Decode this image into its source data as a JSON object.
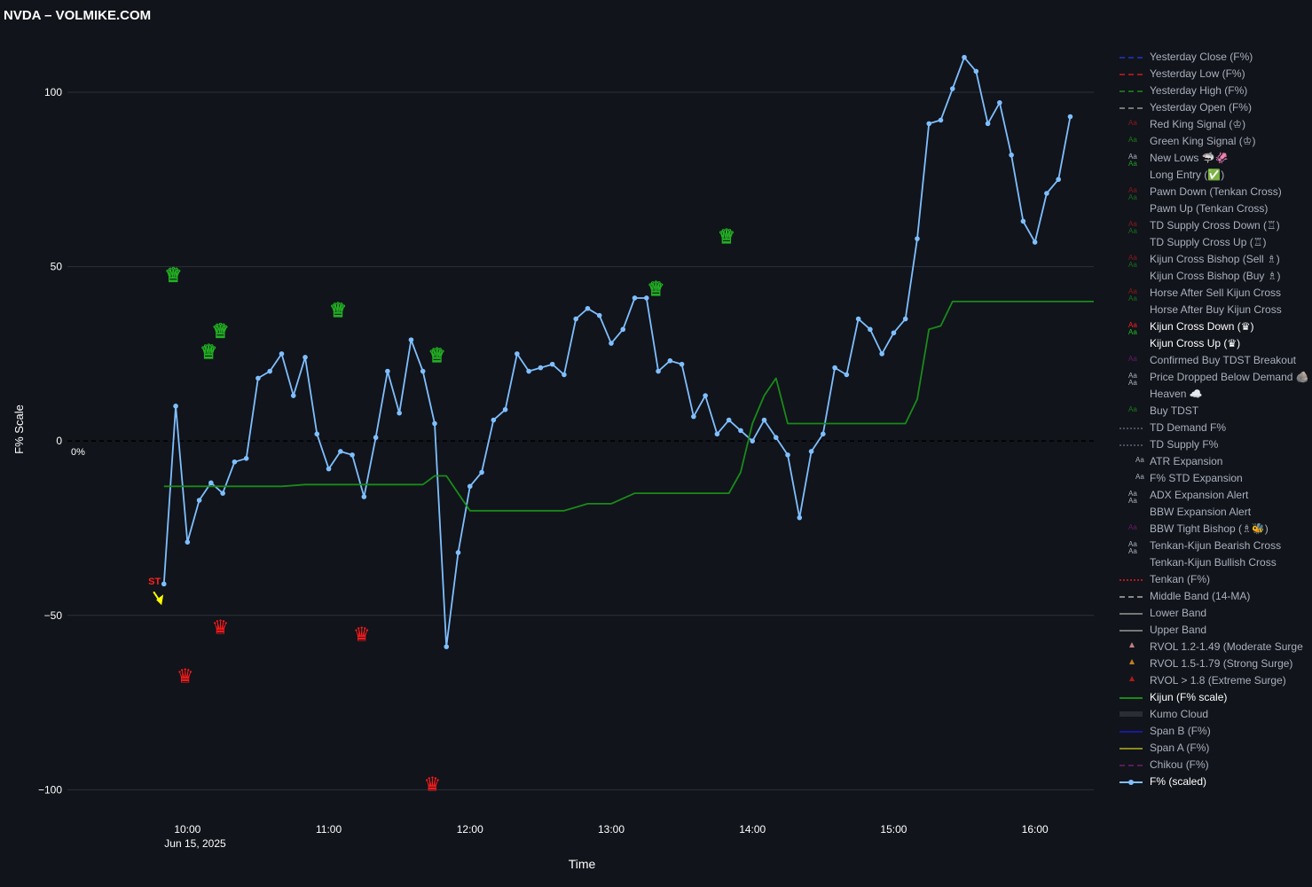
{
  "page": {
    "title": "NVDA – VOLMIKE.COM"
  },
  "chart_data": {
    "type": "line",
    "title": "NVDA – VOLMIKE.COM",
    "xlabel": "Time",
    "ylabel": "F% Scale",
    "zero_label": "0%",
    "x_tick_labels": [
      "10:00",
      "11:00",
      "12:00",
      "13:00",
      "14:00",
      "15:00",
      "16:00"
    ],
    "x_date_label": "Jun 15, 2025",
    "y_tick_values": [
      100,
      50,
      0,
      -50,
      -100
    ],
    "y_tick_labels": [
      "100",
      "50",
      "0",
      "−50",
      "−100"
    ],
    "ylim": [
      -105,
      115
    ],
    "xlim_minutes": [
      549,
      985
    ],
    "grid": true,
    "legend_position": "right",
    "series": [
      {
        "name": "F% (scaled)",
        "color": "#7fbfff",
        "x_minutes": [
          590,
          595,
          600,
          605,
          610,
          615,
          620,
          625,
          630,
          635,
          640,
          645,
          650,
          655,
          660,
          665,
          670,
          675,
          680,
          685,
          690,
          695,
          700,
          705,
          710,
          715,
          720,
          725,
          730,
          735,
          740,
          745,
          750,
          755,
          760,
          765,
          770,
          775,
          780,
          785,
          790,
          795,
          800,
          805,
          810,
          815,
          820,
          825,
          830,
          835,
          840,
          845,
          850,
          855,
          860,
          865,
          870,
          875,
          880,
          885,
          890,
          895,
          900,
          905,
          910,
          915,
          920,
          925,
          930,
          935,
          940,
          945,
          950,
          955,
          960,
          965,
          970,
          975
        ],
        "values": [
          -41,
          10,
          -29,
          -17,
          -12,
          -15,
          -6,
          -5,
          18,
          20,
          25,
          13,
          24,
          2,
          -8,
          -3,
          -4,
          -16,
          1,
          20,
          8,
          29,
          20,
          5,
          -59,
          -32,
          -13,
          -9,
          6,
          9,
          25,
          20,
          21,
          22,
          19,
          35,
          38,
          36,
          28,
          32,
          41,
          41,
          20,
          23,
          22,
          7,
          13,
          2,
          6,
          3,
          0,
          6,
          1,
          -4,
          -22,
          -3,
          2,
          21,
          19,
          35,
          32,
          25,
          31,
          35,
          58,
          91,
          92,
          101,
          110,
          106,
          91,
          97,
          82,
          63,
          57,
          71,
          75,
          93
        ]
      },
      {
        "name": "Kijun (F% scale)",
        "color": "#1a8a1a",
        "x_minutes": [
          590,
          615,
          640,
          650,
          700,
          705,
          710,
          720,
          725,
          760,
          765,
          770,
          780,
          790,
          830,
          835,
          840,
          845,
          850,
          855,
          865,
          880,
          890,
          905,
          910,
          915,
          920,
          925,
          930,
          985
        ],
        "values": [
          -13,
          -13,
          -13,
          -12.5,
          -12.5,
          -10,
          -10,
          -20,
          -20,
          -20,
          -19,
          -18,
          -18,
          -15,
          -15,
          -9,
          5,
          13,
          18,
          5,
          5,
          5,
          5,
          5,
          12,
          32,
          33,
          40,
          40,
          40
        ]
      }
    ],
    "markers": {
      "green_crowns": [
        {
          "x": 594,
          "y": 48
        },
        {
          "x": 609,
          "y": 26
        },
        {
          "x": 614,
          "y": 32
        },
        {
          "x": 664,
          "y": 38
        },
        {
          "x": 706,
          "y": 25
        },
        {
          "x": 799,
          "y": 44
        },
        {
          "x": 829,
          "y": 59
        }
      ],
      "red_crowns": [
        {
          "x": 599,
          "y": -67
        },
        {
          "x": 614,
          "y": -53
        },
        {
          "x": 674,
          "y": -55
        },
        {
          "x": 704,
          "y": -98
        }
      ],
      "st_label": {
        "text": "ST",
        "x": 589,
        "y": -43
      }
    }
  },
  "legend": {
    "items": [
      {
        "label": "Yesterday Close (F%)",
        "swatch": "dash",
        "color": "#1a2f9e",
        "bright": false
      },
      {
        "label": "Yesterday Low (F%)",
        "swatch": "dash",
        "color": "#9e1a1a",
        "bright": false
      },
      {
        "label": "Yesterday High (F%)",
        "swatch": "dash",
        "color": "#1a6e1a",
        "bright": false
      },
      {
        "label": "Yesterday Open (F%)",
        "swatch": "dash",
        "color": "#777777",
        "bright": false
      },
      {
        "label": "Red King Signal (♔)",
        "swatch": "aa",
        "color": "#8b1a1a",
        "color2": "",
        "bright": false
      },
      {
        "label": "Green King Signal (♔)",
        "swatch": "aa",
        "color": "#1a7a1a",
        "color2": "",
        "bright": false
      },
      {
        "label": "New Lows 🦈🦑",
        "swatch": "aa",
        "color": "#aab0bb",
        "color2": "#1fa01f",
        "bright": false
      },
      {
        "label": "Long Entry (✅)",
        "swatch": "none",
        "color": "",
        "color2": "",
        "bright": false
      },
      {
        "label": "Pawn Down (Tenkan Cross)",
        "swatch": "aa",
        "color": "#8b1a1a",
        "color2": "#1a6e1a",
        "bright": false
      },
      {
        "label": "Pawn Up (Tenkan Cross)",
        "swatch": "none",
        "color": "",
        "color2": "",
        "bright": false
      },
      {
        "label": "TD Supply Cross Down (♖)",
        "swatch": "aa",
        "color": "#8b1a1a",
        "color2": "#1a6e1a",
        "bright": false
      },
      {
        "label": "TD Supply Cross Up (♖)",
        "swatch": "none",
        "color": "",
        "color2": "",
        "bright": false
      },
      {
        "label": "Kijun Cross Bishop (Sell ♗)",
        "swatch": "aa",
        "color": "#8b1a1a",
        "color2": "#1a6e1a",
        "bright": false
      },
      {
        "label": "Kijun Cross Bishop (Buy ♗)",
        "swatch": "none",
        "color": "",
        "color2": "",
        "bright": false
      },
      {
        "label": "Horse After Sell Kijun Cross",
        "swatch": "aa",
        "color": "#8b1a1a",
        "color2": "#1a6e1a",
        "bright": false
      },
      {
        "label": "Horse After Buy Kijun Cross",
        "swatch": "none",
        "color": "",
        "color2": "",
        "bright": false
      },
      {
        "label": "Kijun Cross Down (♛)",
        "swatch": "aa",
        "color": "#ff2020",
        "color2": "#1fc01f",
        "bright": true
      },
      {
        "label": "Kijun Cross Up (♛)",
        "swatch": "none",
        "color": "",
        "color2": "",
        "bright": true
      },
      {
        "label": "Confirmed Buy TDST Breakout",
        "swatch": "aa",
        "color": "#6a1a6a",
        "color2": "",
        "bright": false
      },
      {
        "label": "Price Dropped Below Demand 🪨",
        "swatch": "aa",
        "color": "#aab0bb",
        "color2": "#aab0bb",
        "bright": false
      },
      {
        "label": "Heaven ☁️",
        "swatch": "none",
        "color": "",
        "color2": "",
        "bright": false
      },
      {
        "label": "Buy TDST",
        "swatch": "aa",
        "color": "#1a7a1a",
        "color2": "",
        "bright": false
      },
      {
        "label": "TD Demand F%",
        "swatch": "dot",
        "color": "#4a5060",
        "bright": false
      },
      {
        "label": "TD Supply F%",
        "swatch": "dot",
        "color": "#4a5060",
        "bright": false
      },
      {
        "label": "ATR Expansion",
        "swatch": "aa-right",
        "color": "#aab0bb",
        "color2": "",
        "bright": false
      },
      {
        "label": "F% STD Expansion",
        "swatch": "aa-right",
        "color": "#aab0bb",
        "color2": "",
        "bright": false
      },
      {
        "label": "ADX Expansion Alert",
        "swatch": "aa",
        "color": "#aab0bb",
        "color2": "#aab0bb",
        "bright": false
      },
      {
        "label": "BBW Expansion Alert",
        "swatch": "none",
        "color": "",
        "color2": "",
        "bright": false
      },
      {
        "label": "BBW Tight Bishop (♗🐝)",
        "swatch": "aa",
        "color": "#6a1a6a",
        "color2": "",
        "bright": false
      },
      {
        "label": "Tenkan-Kijun Bearish Cross",
        "swatch": "aa",
        "color": "#aab0bb",
        "color2": "#aab0bb",
        "bright": false
      },
      {
        "label": "Tenkan-Kijun Bullish Cross",
        "swatch": "none",
        "color": "",
        "color2": "",
        "bright": false
      },
      {
        "label": "Tenkan (F%)",
        "swatch": "dot",
        "color": "#b01a1a",
        "bright": false
      },
      {
        "label": "Middle Band (14-MA)",
        "swatch": "dash",
        "color": "#888888",
        "bright": false
      },
      {
        "label": "Lower Band",
        "swatch": "solid",
        "color": "#777777",
        "bright": false
      },
      {
        "label": "Upper Band",
        "swatch": "solid",
        "color": "#777777",
        "bright": false
      },
      {
        "label": "RVOL 1.2-1.49 (Moderate Surge",
        "swatch": "tri",
        "color": "#c08080",
        "bright": false
      },
      {
        "label": "RVOL 1.5-1.79 (Strong Surge)",
        "swatch": "tri",
        "color": "#c08020",
        "bright": false
      },
      {
        "label": "RVOL > 1.8 (Extreme Surge)",
        "swatch": "tri",
        "color": "#b01a1a",
        "bright": false
      },
      {
        "label": "Kijun (F% scale)",
        "swatch": "solid",
        "color": "#1a8a1a",
        "bright": true
      },
      {
        "label": "Kumo Cloud",
        "swatch": "band",
        "color": "#2a2d33",
        "bright": false
      },
      {
        "label": "Span B (F%)",
        "swatch": "solid",
        "color": "#1a1a9e",
        "bright": false
      },
      {
        "label": "Span A (F%)",
        "swatch": "solid",
        "color": "#8a8a1a",
        "bright": false
      },
      {
        "label": "Chikou (F%)",
        "swatch": "dash",
        "color": "#5a1a5a",
        "bright": false
      },
      {
        "label": "F% (scaled)",
        "swatch": "linemarker",
        "color": "#7fbfff",
        "bright": true
      }
    ]
  }
}
